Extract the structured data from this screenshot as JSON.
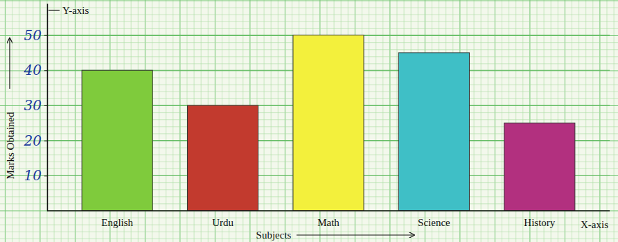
{
  "chart_data": {
    "type": "bar",
    "categories": [
      "English",
      "Urdu",
      "Math",
      "Science",
      "History"
    ],
    "values": [
      40,
      30,
      50,
      45,
      25
    ],
    "colors": [
      "#7fcb3c",
      "#c23a2e",
      "#f3f03c",
      "#3fbfc6",
      "#b2307f"
    ],
    "x_label": "Subjects",
    "y_label": "Marks Obtained",
    "annotations": [
      "Y-axis",
      "X-axis"
    ],
    "ylim": [
      0,
      59
    ],
    "yticks": [
      10,
      20,
      30,
      40,
      50
    ],
    "grid": true
  }
}
